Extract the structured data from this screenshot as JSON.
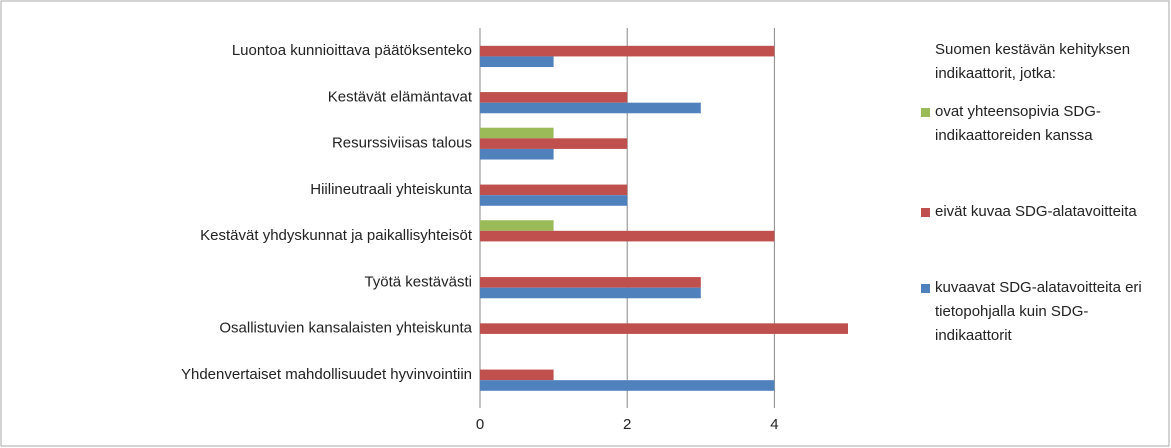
{
  "chart_data": {
    "type": "hbar",
    "categories": [
      "Luontoa kunnioittava päätöksenteko",
      "Kestävät elämäntavat",
      "Resurssiviisas talous",
      "Hiilineutraali yhteiskunta",
      "Kestävät yhdyskunnat ja paikallisyhteisöt",
      "Työtä kestävästi",
      "Osallistuvien kansalaisten yhteiskunta",
      "Yhdenvertaiset mahdollisuudet hyvinvointiin"
    ],
    "series": [
      {
        "name": "ovat yhteensopivia SDG-indikaattoreiden kanssa",
        "color": "#9bbb59",
        "values": [
          0,
          0,
          1,
          0,
          1,
          0,
          0,
          0
        ]
      },
      {
        "name": "eivät kuvaa SDG-alatavoitteita",
        "color": "#c0504d",
        "values": [
          4,
          2,
          2,
          2,
          4,
          3,
          5,
          1
        ]
      },
      {
        "name": "kuvaavat SDG-alatavoitteita eri tietopohjalla kuin SDG-indikaattorit",
        "color": "#4f81bd",
        "values": [
          1,
          3,
          1,
          2,
          0,
          3,
          0,
          4
        ]
      }
    ],
    "legend_title": "Suomen kestävän kehityksen indikaattorit, jotka:",
    "xlim": [
      0,
      5
    ],
    "xticks": [
      0,
      2,
      4
    ],
    "grid": true,
    "legend": "right"
  }
}
